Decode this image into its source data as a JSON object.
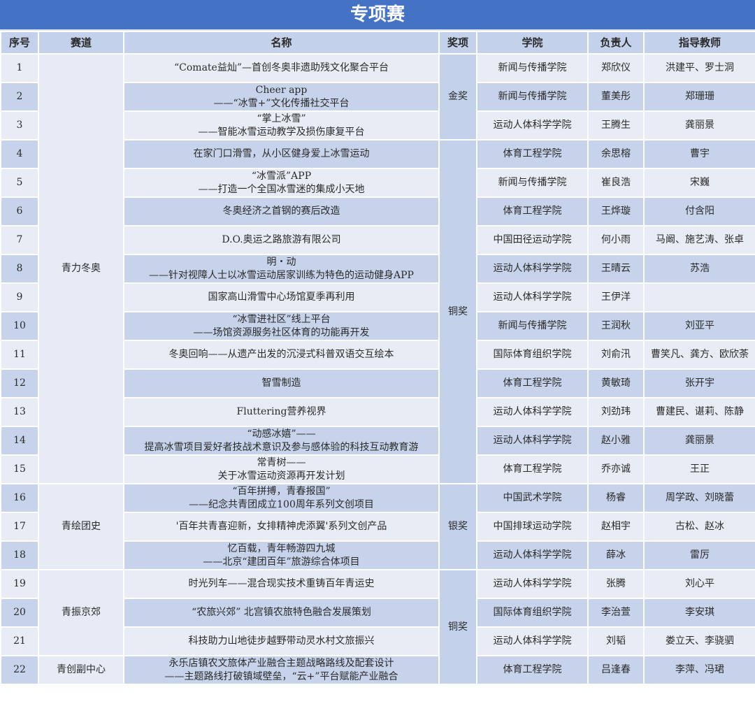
{
  "title": "专项赛",
  "headers": [
    "序号",
    "赛道",
    "名称",
    "奖项",
    "学院",
    "负责人",
    "指导教师"
  ],
  "tracks": [
    {
      "label": "青力冬奥",
      "from": 1,
      "span": 15
    },
    {
      "label": "青绘团史",
      "from": 16,
      "span": 3
    },
    {
      "label": "青振京郊",
      "from": 19,
      "span": 3
    },
    {
      "label": "青创副中心",
      "from": 22,
      "span": 1
    }
  ],
  "awards": [
    {
      "label": "金奖",
      "from": 1,
      "span": 3
    },
    {
      "label": "铜奖",
      "from": 4,
      "span": 12
    },
    {
      "label": "银奖",
      "from": 16,
      "span": 3
    },
    {
      "label": "铜奖",
      "from": 19,
      "span": 4
    }
  ],
  "rows": [
    {
      "no": "1",
      "name": "“Comate益灿”—首创冬奥非遗助残文化聚合平台",
      "school": "新闻与传播学院",
      "leader": "郑欣仪",
      "advisor": "洪建平、罗士洞"
    },
    {
      "no": "2",
      "name": "Cheer app\n——“冰雪+”文化传播社交平台",
      "school": "新闻与传播学院",
      "leader": "董美彤",
      "advisor": "郑珊珊"
    },
    {
      "no": "3",
      "name": "“掌上冰雪”\n——智能冰雪运动教学及损伤康复平台",
      "school": "运动人体科学学院",
      "leader": "王腾生",
      "advisor": "龚丽景"
    },
    {
      "no": "4",
      "name": "在家门口滑雪，从小区健身爱上冰雪运动",
      "school": "体育工程学院",
      "leader": "余思榕",
      "advisor": "曹宇"
    },
    {
      "no": "5",
      "name": "“冰雪派”APP\n——打造一个全国冰雪迷的集成小天地",
      "school": "新闻与传播学院",
      "leader": "崔良浩",
      "advisor": "宋巍"
    },
    {
      "no": "6",
      "name": "冬奥经济之首钢的赛后改造",
      "school": "体育工程学院",
      "leader": "王烨璇",
      "advisor": "付含阳"
    },
    {
      "no": "7",
      "name": "D.O.奥运之路旅游有限公司",
      "school": "中国田径运动学院",
      "leader": "何小雨",
      "advisor": "马阚、施艺涛、张卓"
    },
    {
      "no": "8",
      "name": "明・动\n——针对视障人士以冰雪运动居家训练为特色的运动健身APP",
      "school": "运动人体科学学院",
      "leader": "王晴云",
      "advisor": "苏浩"
    },
    {
      "no": "9",
      "name": "国家高山滑雪中心场馆夏季再利用",
      "school": "运动人体科学学院",
      "leader": "王伊洋",
      "advisor": ""
    },
    {
      "no": "10",
      "name": "“冰雪进社区”线上平台\n——场馆资源服务社区体育的功能再开发",
      "school": "新闻与传播学院",
      "leader": "王润秋",
      "advisor": "刘亚平"
    },
    {
      "no": "11",
      "name": "冬奥回响——从遗产出发的沉浸式科普双语交互绘本",
      "school": "国际体育组织学院",
      "leader": "刘俞汛",
      "advisor": "曹笑凡、龚方、欧欣荼"
    },
    {
      "no": "12",
      "name": "智雪制造",
      "school": "体育工程学院",
      "leader": "黄敏琦",
      "advisor": "张开宇"
    },
    {
      "no": "13",
      "name": "Fluttering营养视界",
      "school": "运动人体科学学院",
      "leader": "刘劲玮",
      "advisor": "曹建民、谌莉、陈静"
    },
    {
      "no": "14",
      "name": "“动感冰嬉”——\n提高冰雪项目爱好者技战术意识及参与感体验的科技互动教育游",
      "school": "运动人体科学学院",
      "leader": "赵小雅",
      "advisor": "龚丽景"
    },
    {
      "no": "15",
      "name": "常青树——\n关于冰雪运动资源再开发计划",
      "school": "体育工程学院",
      "leader": "乔亦诚",
      "advisor": "王正"
    },
    {
      "no": "16",
      "name": "“百年拼搏，青春报国”\n——纪念共青团成立100周年系列文创项目",
      "school": "中国武术学院",
      "leader": "杨睿",
      "advisor": "周学政、刘晓蕾"
    },
    {
      "no": "17",
      "name": "'百年共青喜迎新，女排精神虎添翼'系列文创产品",
      "school": "中国排球运动学院",
      "leader": "赵相宇",
      "advisor": "古松、赵冰"
    },
    {
      "no": "18",
      "name": "忆百载，青年畅游四九城\n——北京“建团百年”旅游综合体项目",
      "school": "运动人体科学学院",
      "leader": "薛冰",
      "advisor": "雷厉"
    },
    {
      "no": "19",
      "name": "时光列车——混合现实技术重铸百年青运史",
      "school": "运动人体科学学院",
      "leader": "张腾",
      "advisor": "刘心平"
    },
    {
      "no": "20",
      "name": "“农旅兴郊” 北宫镇农旅特色融合发展策划",
      "school": "国际体育组织学院",
      "leader": "李治萱",
      "advisor": "李安琪"
    },
    {
      "no": "21",
      "name": "科技助力山地徒步越野带动灵水村文旅振兴",
      "school": "运动人体科学学院",
      "leader": "刘韬",
      "advisor": "娄立天、李骁驷"
    },
    {
      "no": "22",
      "name": "永乐店镇农文旅体产业融合主题战略路线及配套设计\n——主题路线打破镇域壁垒，“云+”平台赋能产业融合",
      "school": "体育工程学院",
      "leader": "吕逢春",
      "advisor": "李萍、冯珺"
    }
  ]
}
